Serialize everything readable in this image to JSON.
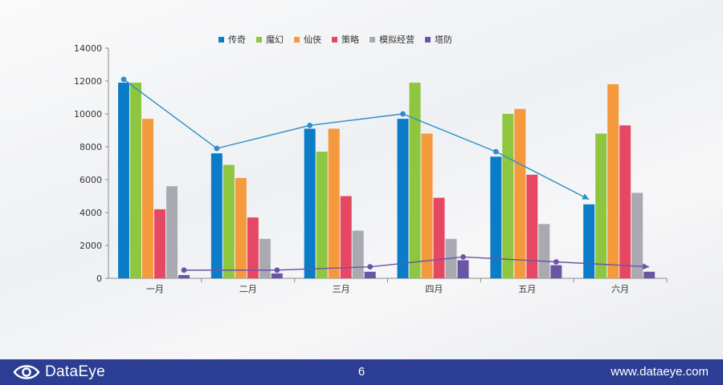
{
  "chart_data": {
    "type": "bar",
    "categories": [
      "一月",
      "二月",
      "三月",
      "四月",
      "五月",
      "六月"
    ],
    "ylim": [
      0,
      14000
    ],
    "yticks": [
      0,
      2000,
      4000,
      6000,
      8000,
      10000,
      12000,
      14000
    ],
    "legend_position": "top",
    "grid": false,
    "series": [
      {
        "name": "传奇",
        "color": "#0b7dc8",
        "values": [
          11900,
          7600,
          9100,
          9700,
          7400,
          4500
        ]
      },
      {
        "name": "魔幻",
        "color": "#8ec63f",
        "values": [
          11900,
          6900,
          7700,
          11900,
          10000,
          8800
        ]
      },
      {
        "name": "仙侠",
        "color": "#f59a3c",
        "values": [
          9700,
          6100,
          9100,
          8800,
          10300,
          11800
        ]
      },
      {
        "name": "策略",
        "color": "#e64863",
        "values": [
          4200,
          3700,
          5000,
          4900,
          6300,
          9300
        ]
      },
      {
        "name": "模拟经营",
        "color": "#a9a9b2",
        "values": [
          5600,
          2400,
          2900,
          2400,
          3300,
          5200
        ]
      },
      {
        "name": "塔防",
        "color": "#6a55a4",
        "values": [
          200,
          300,
          400,
          1100,
          800,
          400
        ]
      }
    ],
    "trend_lines": [
      {
        "color": "#2b8fca",
        "values": [
          12100,
          7900,
          9300,
          10000,
          7700,
          4800
        ]
      },
      {
        "color": "#6a55a4",
        "values": [
          500,
          500,
          700,
          1300,
          1000,
          700
        ]
      }
    ]
  },
  "footer": {
    "logo_text": "DataEye",
    "page_number": "6",
    "url": "www.dataeye.com",
    "logo_icon": "eye-icon"
  }
}
